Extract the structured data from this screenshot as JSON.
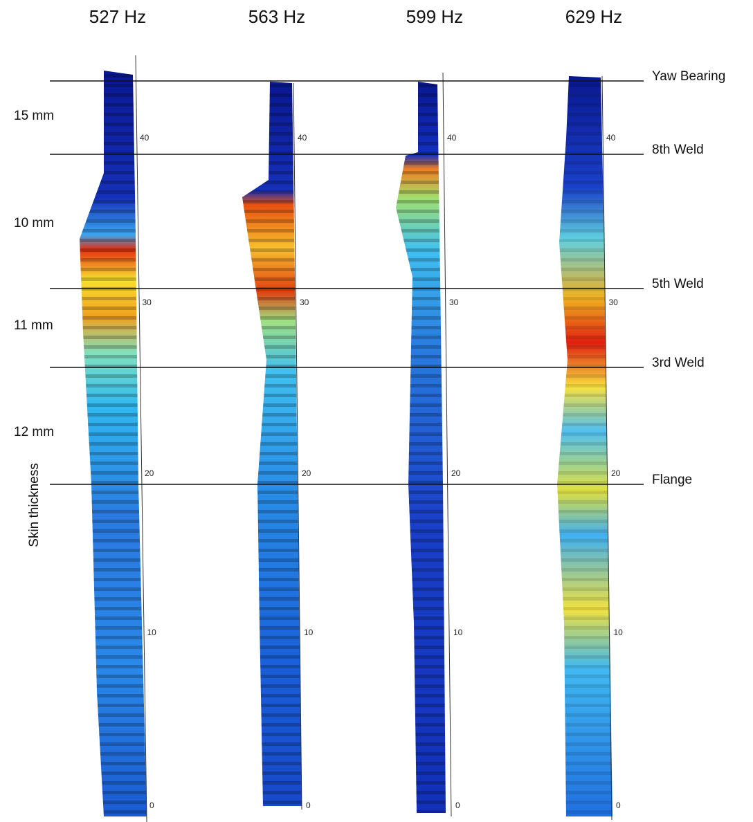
{
  "panels": [
    {
      "title": "527 Hz",
      "ticks": [
        "40",
        "30",
        "20",
        "10",
        "0"
      ]
    },
    {
      "title": "563 Hz",
      "ticks": [
        "40",
        "30",
        "20",
        "10",
        "0"
      ]
    },
    {
      "title": "599 Hz",
      "ticks": [
        "40",
        "30",
        "20",
        "10",
        "0"
      ]
    },
    {
      "title": "629 Hz",
      "ticks": [
        "40",
        "30",
        "20",
        "10",
        "0"
      ]
    }
  ],
  "thickness_labels": [
    "15 mm",
    "10 mm",
    "11 mm",
    "12 mm"
  ],
  "y_label": "Skin thickness",
  "sections": [
    "Yaw Bearing",
    "8th Weld",
    "5th Weld",
    "3rd Weld",
    "Flange"
  ]
}
